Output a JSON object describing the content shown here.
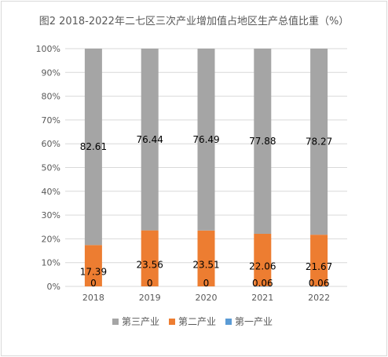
{
  "chart_data": {
    "type": "bar",
    "stacked": true,
    "title": "图2 2018-2022年二七区三次产业增加值占地区生产总值比重（%）",
    "categories": [
      "2018",
      "2019",
      "2020",
      "2021",
      "2022"
    ],
    "ylim": [
      0,
      100
    ],
    "yticks": [
      "0%",
      "10%",
      "20%",
      "30%",
      "40%",
      "50%",
      "60%",
      "70%",
      "80%",
      "90%",
      "100%"
    ],
    "grid": true,
    "legend_position": "bottom",
    "series": [
      {
        "name": "第一产业",
        "values": [
          0,
          0,
          0,
          0.06,
          0.06
        ],
        "labels": [
          "0",
          "0",
          "0",
          "0.06",
          "0.06"
        ],
        "color": "#5b9bd5"
      },
      {
        "name": "第二产业",
        "values": [
          17.39,
          23.56,
          23.51,
          22.06,
          21.67
        ],
        "labels": [
          "17.39",
          "23.56",
          "23.51",
          "22.06",
          "21.67"
        ],
        "color": "#ed7d31"
      },
      {
        "name": "第三产业",
        "values": [
          82.61,
          76.44,
          76.49,
          77.88,
          78.27
        ],
        "labels": [
          "82.61",
          "76.44",
          "76.49",
          "77.88",
          "78.27"
        ],
        "color": "#a5a5a5"
      }
    ],
    "legend_order": [
      2,
      1,
      0
    ]
  }
}
